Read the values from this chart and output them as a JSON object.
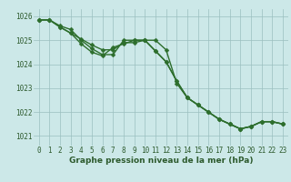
{
  "xlabel": "Graphe pression niveau de la mer (hPa)",
  "background_color": "#cce8e8",
  "plot_bg_color": "#cce8e8",
  "line_color": "#2d6e2d",
  "grid_color": "#9bbfbf",
  "text_color": "#2d5a2d",
  "xlim": [
    -0.5,
    23.5
  ],
  "ylim": [
    1020.6,
    1026.3
  ],
  "yticks": [
    1021,
    1022,
    1023,
    1024,
    1025,
    1026
  ],
  "xticks": [
    0,
    1,
    2,
    3,
    4,
    5,
    6,
    7,
    8,
    9,
    10,
    11,
    12,
    13,
    14,
    15,
    16,
    17,
    18,
    19,
    20,
    21,
    22,
    23
  ],
  "series1_x": [
    0,
    1,
    2,
    3,
    4,
    5,
    6,
    7,
    8,
    9,
    10,
    11,
    12,
    13,
    14,
    15,
    16,
    17,
    18,
    19,
    20,
    21,
    22,
    23
  ],
  "series1_y": [
    1025.85,
    1025.85,
    1025.6,
    1025.45,
    1025.0,
    1024.65,
    1024.4,
    1024.4,
    1025.0,
    1025.0,
    1025.0,
    1024.55,
    1024.1,
    1023.3,
    1022.6,
    1022.3,
    1022.0,
    1021.7,
    1021.5,
    1021.3,
    1021.4,
    1021.6,
    1021.6,
    1021.5
  ],
  "series2_x": [
    0,
    1,
    2,
    3,
    4,
    5,
    6,
    7,
    8,
    9,
    10,
    11,
    12,
    13,
    14,
    15,
    16,
    17,
    18,
    19,
    20,
    21,
    22,
    23
  ],
  "series2_y": [
    1025.85,
    1025.85,
    1025.55,
    1025.3,
    1024.85,
    1024.5,
    1024.35,
    1024.7,
    1024.85,
    1025.0,
    1025.0,
    1024.55,
    1024.1,
    1023.3,
    1022.6,
    1022.3,
    1022.0,
    1021.7,
    1021.5,
    1021.3,
    1021.4,
    1021.6,
    1021.6,
    1021.5
  ],
  "series3_x": [
    0,
    1,
    2,
    3,
    4,
    5,
    6,
    7,
    8,
    9,
    10,
    11,
    12,
    13,
    14,
    15,
    16,
    17,
    18,
    19,
    20,
    21,
    22,
    23
  ],
  "series3_y": [
    1025.85,
    1025.85,
    1025.55,
    1025.3,
    1025.05,
    1024.8,
    1024.6,
    1024.6,
    1024.9,
    1024.9,
    1025.0,
    1025.0,
    1024.6,
    1023.2,
    1022.6,
    1022.3,
    1022.0,
    1021.7,
    1021.5,
    1021.3,
    1021.4,
    1021.6,
    1021.6,
    1021.5
  ],
  "marker_size": 2.5,
  "line_width": 1.0,
  "tick_fontsize": 5.5,
  "label_fontsize": 6.5
}
